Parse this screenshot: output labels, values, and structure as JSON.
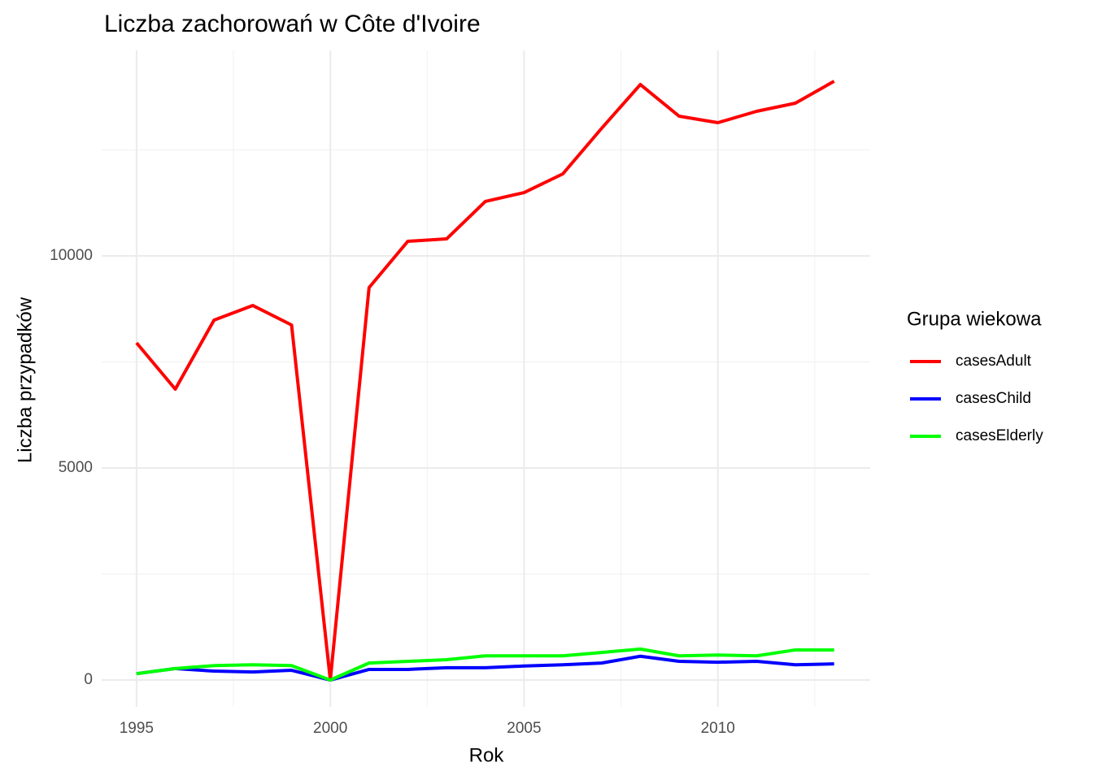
{
  "chart_data": {
    "type": "line",
    "title": "Liczba zachorowań w Côte d'Ivoire",
    "x_label": "Rok",
    "y_label": "Liczba przypadków",
    "legend_title": "Grupa wiekowa",
    "legend_position": "right",
    "grid": true,
    "x": [
      1995,
      1996,
      1997,
      1998,
      1999,
      2000,
      2001,
      2002,
      2003,
      2004,
      2005,
      2006,
      2007,
      2008,
      2009,
      2010,
      2011,
      2012,
      2013
    ],
    "series": [
      {
        "name": "casesAdult",
        "color": "#ff0000",
        "values": [
          7950,
          6858,
          8487,
          8831,
          8372,
          0,
          9253,
          10345,
          10402,
          11284,
          11494,
          11935,
          13008,
          14042,
          13295,
          13142,
          13410,
          13602,
          14119
        ]
      },
      {
        "name": "casesChild",
        "color": "#0000ff",
        "values": [
          150,
          270,
          210,
          190,
          230,
          0,
          250,
          250,
          290,
          290,
          330,
          360,
          400,
          560,
          440,
          420,
          440,
          360,
          380
        ]
      },
      {
        "name": "casesElderly",
        "color": "#00ff00",
        "values": [
          150,
          270,
          340,
          360,
          340,
          0,
          400,
          440,
          480,
          570,
          570,
          570,
          650,
          730,
          570,
          590,
          570,
          710,
          710
        ]
      }
    ],
    "xlim": [
      1994.1,
      2013.93
    ],
    "xticks": [
      1995,
      2000,
      2005,
      2010
    ],
    "x_minor_ticks": [
      1997.5,
      2002.5,
      2007.5,
      2012.5
    ],
    "ylim": [
      -632,
      14847
    ],
    "yticks": [
      0,
      5000,
      10000
    ],
    "y_minor_ticks": [
      2500,
      7500,
      12500
    ]
  }
}
